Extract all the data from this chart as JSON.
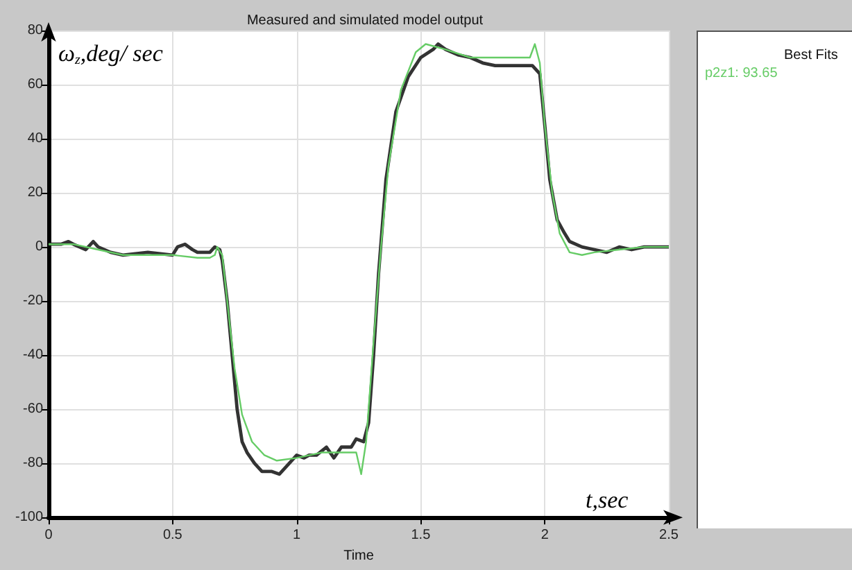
{
  "chart_data": {
    "type": "line",
    "title": "Measured and simulated model output",
    "xlabel": "Time",
    "legend_title": "Best Fits",
    "legend": "right",
    "grid": true,
    "marker": "none",
    "xlim": [
      0,
      2.5
    ],
    "xticks": [
      0,
      0.5,
      1,
      1.5,
      2,
      2.5
    ],
    "ylim": [
      -100,
      80
    ],
    "yticks": [
      -100,
      -80,
      -60,
      -40,
      -20,
      0,
      20,
      40,
      60,
      80
    ],
    "annotations": [
      "ω$_{z}$,deg/ sec",
      "t,sec"
    ],
    "series": [
      {
        "color": "#333333",
        "x": [
          0,
          0.05,
          0.08,
          0.1,
          0.15,
          0.18,
          0.2,
          0.25,
          0.3,
          0.4,
          0.5,
          0.52,
          0.55,
          0.58,
          0.6,
          0.65,
          0.67,
          0.69,
          0.7,
          0.72,
          0.74,
          0.76,
          0.78,
          0.8,
          0.83,
          0.86,
          0.9,
          0.93,
          0.96,
          1.0,
          1.03,
          1.05,
          1.08,
          1.12,
          1.15,
          1.18,
          1.22,
          1.24,
          1.27,
          1.29,
          1.31,
          1.33,
          1.36,
          1.4,
          1.45,
          1.5,
          1.55,
          1.57,
          1.6,
          1.65,
          1.7,
          1.75,
          1.8,
          1.85,
          1.9,
          1.95,
          1.98,
          2.0,
          2.02,
          2.05,
          2.08,
          2.1,
          2.15,
          2.2,
          2.25,
          2.3,
          2.35,
          2.4,
          2.45,
          2.5
        ],
        "values": [
          1,
          1,
          2,
          1,
          -1,
          2,
          0,
          -2,
          -3,
          -2,
          -3,
          0,
          1,
          -1,
          -2,
          -2,
          0,
          -1,
          -5,
          -20,
          -40,
          -60,
          -72,
          -76,
          -80,
          -83,
          -83,
          -84,
          -81,
          -77,
          -78,
          -77,
          -77,
          -74,
          -78,
          -74,
          -74,
          -71,
          -72,
          -65,
          -40,
          -10,
          25,
          50,
          63,
          70,
          73,
          75,
          73,
          71,
          70,
          68,
          67,
          67,
          67,
          67,
          64,
          45,
          25,
          10,
          5,
          2,
          0,
          -1,
          -2,
          0,
          -1,
          0,
          0,
          0
        ]
      },
      {
        "name": "p2z1: 93.65",
        "color": "#66cc66",
        "x": [
          0,
          0.1,
          0.2,
          0.3,
          0.4,
          0.5,
          0.6,
          0.65,
          0.67,
          0.68,
          0.7,
          0.72,
          0.75,
          0.78,
          0.82,
          0.87,
          0.92,
          1.0,
          1.1,
          1.2,
          1.24,
          1.26,
          1.28,
          1.31,
          1.34,
          1.37,
          1.42,
          1.48,
          1.52,
          1.6,
          1.7,
          1.8,
          1.9,
          1.94,
          1.96,
          1.98,
          2.0,
          2.03,
          2.06,
          2.1,
          2.15,
          2.2,
          2.3,
          2.4,
          2.5
        ],
        "values": [
          1,
          1,
          -1,
          -3,
          -3,
          -3,
          -4,
          -4,
          -3,
          0,
          -3,
          -20,
          -45,
          -62,
          -72,
          -77,
          -79,
          -78,
          -76,
          -76,
          -76,
          -84,
          -72,
          -35,
          0,
          30,
          58,
          72,
          75,
          73,
          70,
          70,
          70,
          70,
          75,
          68,
          45,
          20,
          5,
          -2,
          -3,
          -2,
          -1,
          0,
          0
        ]
      }
    ]
  }
}
